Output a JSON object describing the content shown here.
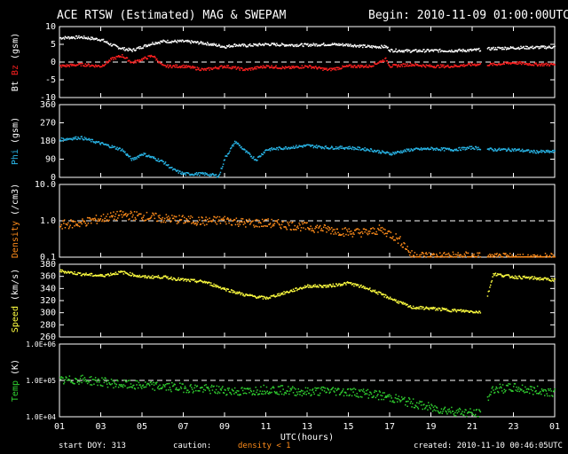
{
  "header": {
    "title": "ACE RTSW (Estimated) MAG & SWEPAM",
    "begin": "Begin: 2010-11-09 01:00:00UTC"
  },
  "footer": {
    "start_doy": "start DOY: 313",
    "caution": "caution:",
    "density_note": "density < 1",
    "created": "created: 2010-11-10 00:46:05UTC"
  },
  "colors": {
    "bt": "#ffffff",
    "bz": "#ff2020",
    "phi": "#29b6e8",
    "density": "#ff8c1a",
    "speed": "#ffff40",
    "temp": "#30d030",
    "axis": "#ffffff",
    "background": "#000000"
  },
  "chart_data": {
    "type": "scatter",
    "xlabel": "UTC(hours)",
    "x_ticks": [
      "01",
      "03",
      "05",
      "07",
      "09",
      "11",
      "13",
      "15",
      "17",
      "19",
      "21",
      "23",
      "01"
    ],
    "x_range_hours": [
      1,
      25
    ],
    "panels": [
      {
        "id": "mag",
        "ylabels": [
          {
            "text": "Bt",
            "color": "#ffffff"
          },
          {
            "text": "Bz",
            "color": "#ff2020"
          },
          {
            "text": "(gsm)",
            "color": "#ffffff"
          }
        ],
        "ylim": [
          -10,
          10
        ],
        "scale": "linear",
        "yticks": [
          "10",
          "5",
          "0",
          "-5",
          "-10"
        ],
        "ytick_values": [
          10,
          5,
          0,
          -5,
          -10
        ],
        "dashed_ref": [
          0
        ],
        "series": [
          {
            "name": "Bt",
            "color": "#ffffff",
            "points": [
              [
                1,
                7
              ],
              [
                2,
                7.2
              ],
              [
                3,
                6.5
              ],
              [
                3.5,
                5
              ],
              [
                4,
                4
              ],
              [
                4.5,
                3.5
              ],
              [
                5,
                4.5
              ],
              [
                5.5,
                5.5
              ],
              [
                6,
                6
              ],
              [
                7,
                6
              ],
              [
                8,
                5.5
              ],
              [
                9,
                4.5
              ],
              [
                9.5,
                5
              ],
              [
                10,
                4.8
              ],
              [
                11,
                5.2
              ],
              [
                12,
                5
              ],
              [
                13,
                5
              ],
              [
                14,
                5.2
              ],
              [
                15,
                5
              ],
              [
                16,
                4.5
              ],
              [
                16.8,
                4.5
              ],
              [
                17,
                3.5
              ],
              [
                18,
                3.3
              ],
              [
                19,
                3.4
              ],
              [
                20,
                3.4
              ],
              [
                21,
                3.5
              ],
              [
                22,
                4
              ],
              [
                23,
                4.2
              ],
              [
                24,
                4.3
              ],
              [
                25,
                4.4
              ]
            ]
          },
          {
            "name": "Bz",
            "color": "#ff2020",
            "points": [
              [
                1,
                -1
              ],
              [
                2,
                -0.5
              ],
              [
                3,
                -1
              ],
              [
                3.5,
                1
              ],
              [
                4,
                2
              ],
              [
                4.5,
                0
              ],
              [
                5,
                1
              ],
              [
                5.5,
                2
              ],
              [
                6,
                -1
              ],
              [
                7,
                -1
              ],
              [
                8,
                -2
              ],
              [
                9,
                -1
              ],
              [
                10,
                -2
              ],
              [
                11,
                -1
              ],
              [
                12,
                -1.5
              ],
              [
                13,
                -1
              ],
              [
                14,
                -2
              ],
              [
                15,
                -1
              ],
              [
                16,
                -1
              ],
              [
                16.8,
                1
              ],
              [
                17,
                -1
              ],
              [
                18,
                -0.5
              ],
              [
                19,
                -1
              ],
              [
                20,
                -1
              ],
              [
                21,
                -0.5
              ],
              [
                22,
                -0.5
              ],
              [
                23,
                0
              ],
              [
                24,
                -0.5
              ],
              [
                25,
                -0.5
              ]
            ]
          }
        ]
      },
      {
        "id": "phi",
        "ylabels": [
          {
            "text": "Phi",
            "color": "#29b6e8"
          },
          {
            "text": "(gsm)",
            "color": "#ffffff"
          }
        ],
        "ylim": [
          0,
          360
        ],
        "scale": "linear",
        "yticks": [
          "360",
          "270",
          "180",
          "90",
          "0"
        ],
        "ytick_values": [
          360,
          270,
          180,
          90,
          0
        ],
        "dashed_ref": [],
        "series": [
          {
            "name": "Phi",
            "color": "#29b6e8",
            "points": [
              [
                1,
                190
              ],
              [
                2,
                200
              ],
              [
                3,
                170
              ],
              [
                4,
                140
              ],
              [
                4.5,
                90
              ],
              [
                5,
                120
              ],
              [
                6,
                80
              ],
              [
                6.5,
                40
              ],
              [
                7,
                20
              ],
              [
                8,
                20
              ],
              [
                8.7,
                10
              ],
              [
                9,
                100
              ],
              [
                9.5,
                180
              ],
              [
                10,
                130
              ],
              [
                10.5,
                90
              ],
              [
                11,
                140
              ],
              [
                12,
                150
              ],
              [
                13,
                160
              ],
              [
                14,
                150
              ],
              [
                15,
                150
              ],
              [
                16,
                140
              ],
              [
                17,
                120
              ],
              [
                18,
                140
              ],
              [
                19,
                145
              ],
              [
                20,
                140
              ],
              [
                21,
                150
              ],
              [
                22,
                140
              ],
              [
                23,
                140
              ],
              [
                24,
                130
              ],
              [
                25,
                130
              ]
            ]
          }
        ]
      },
      {
        "id": "density",
        "ylabels": [
          {
            "text": "Density",
            "color": "#ff8c1a"
          },
          {
            "text": "(/cm3)",
            "color": "#ffffff"
          }
        ],
        "ylim": [
          0.1,
          10
        ],
        "scale": "log",
        "yticks": [
          "10.0",
          "1.0",
          "0.1"
        ],
        "ytick_values": [
          10,
          1,
          0.1
        ],
        "dashed_ref": [
          1
        ],
        "series": [
          {
            "name": "Density",
            "color": "#ff8c1a",
            "points": [
              [
                1,
                0.8
              ],
              [
                2,
                0.9
              ],
              [
                3,
                1.2
              ],
              [
                4,
                1.5
              ],
              [
                5,
                1.4
              ],
              [
                6,
                1.2
              ],
              [
                7,
                1.1
              ],
              [
                8,
                1.0
              ],
              [
                9,
                1.1
              ],
              [
                10,
                0.9
              ],
              [
                11,
                0.9
              ],
              [
                12,
                0.8
              ],
              [
                13,
                0.7
              ],
              [
                14,
                0.6
              ],
              [
                15,
                0.5
              ],
              [
                16,
                0.5
              ],
              [
                16.5,
                0.6
              ],
              [
                17,
                0.45
              ],
              [
                18,
                0.12
              ],
              [
                19,
                0.11
              ],
              [
                20,
                0.11
              ],
              [
                21,
                0.11
              ],
              [
                22,
                0.1
              ],
              [
                23,
                0.1
              ],
              [
                24,
                0.1
              ],
              [
                25,
                0.1
              ]
            ]
          }
        ]
      },
      {
        "id": "speed",
        "ylabels": [
          {
            "text": "Speed",
            "color": "#ffff40"
          },
          {
            "text": "(km/s)",
            "color": "#ffffff"
          }
        ],
        "ylim": [
          260,
          380
        ],
        "scale": "linear",
        "yticks": [
          "380",
          "360",
          "340",
          "320",
          "300",
          "280",
          "260"
        ],
        "ytick_values": [
          380,
          360,
          340,
          320,
          300,
          280,
          260
        ],
        "dashed_ref": [],
        "series": [
          {
            "name": "Speed",
            "color": "#ffff40",
            "points": [
              [
                1,
                370
              ],
              [
                2,
                365
              ],
              [
                3,
                362
              ],
              [
                4,
                368
              ],
              [
                5,
                360
              ],
              [
                6,
                360
              ],
              [
                7,
                355
              ],
              [
                8,
                352
              ],
              [
                9,
                340
              ],
              [
                10,
                330
              ],
              [
                11,
                325
              ],
              [
                12,
                335
              ],
              [
                13,
                345
              ],
              [
                14,
                345
              ],
              [
                15,
                350
              ],
              [
                16,
                340
              ],
              [
                17,
                325
              ],
              [
                18,
                310
              ],
              [
                19,
                308
              ],
              [
                20,
                305
              ],
              [
                21,
                303
              ],
              [
                21.5,
                302
              ],
              [
                22,
                365
              ],
              [
                23,
                360
              ],
              [
                24,
                358
              ],
              [
                25,
                355
              ]
            ]
          }
        ]
      },
      {
        "id": "temp",
        "ylabels": [
          {
            "text": "Temp",
            "color": "#30d030"
          },
          {
            "text": "(K)",
            "color": "#ffffff"
          }
        ],
        "ylim": [
          10000,
          1000000
        ],
        "scale": "log",
        "yticks": [
          "1.0E+06",
          "1.0E+05",
          "1.0E+04"
        ],
        "ytick_values": [
          1000000,
          100000,
          10000
        ],
        "dashed_ref": [
          100000
        ],
        "series": [
          {
            "name": "Temp",
            "color": "#30d030",
            "points": [
              [
                1,
                100000
              ],
              [
                2,
                110000
              ],
              [
                3,
                95000
              ],
              [
                4,
                80000
              ],
              [
                5,
                75000
              ],
              [
                6,
                70000
              ],
              [
                7,
                65000
              ],
              [
                8,
                60000
              ],
              [
                9,
                55000
              ],
              [
                10,
                50000
              ],
              [
                11,
                60000
              ],
              [
                12,
                55000
              ],
              [
                13,
                50000
              ],
              [
                14,
                55000
              ],
              [
                15,
                50000
              ],
              [
                16,
                45000
              ],
              [
                17,
                35000
              ],
              [
                18,
                25000
              ],
              [
                19,
                18000
              ],
              [
                20,
                15000
              ],
              [
                21,
                13000
              ],
              [
                21.5,
                12000
              ],
              [
                22,
                60000
              ],
              [
                23,
                65000
              ],
              [
                24,
                55000
              ],
              [
                25,
                50000
              ]
            ]
          }
        ]
      }
    ]
  }
}
